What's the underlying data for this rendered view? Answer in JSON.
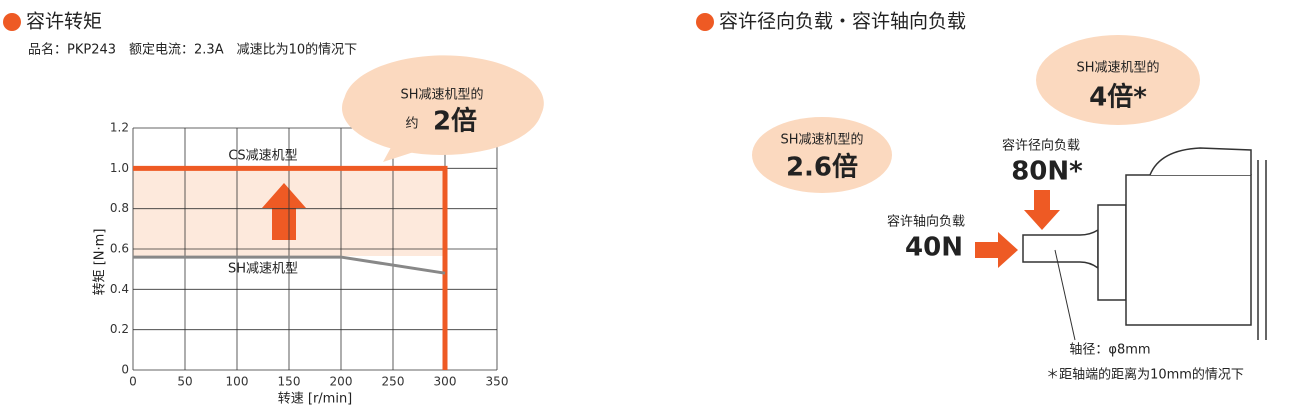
{
  "chart_data": {
    "type": "line",
    "title": "容许转矩",
    "subtitle": "品名：PKP243　额定电流：2.3A　减速比为10的情况下",
    "x_label": "转速 [r/min]",
    "y_label": "转矩 [N·m]",
    "xlim": [
      0,
      350
    ],
    "xticks": [
      0,
      50,
      100,
      150,
      200,
      250,
      300,
      350
    ],
    "ylim": [
      0,
      1.2
    ],
    "yticks": [
      0,
      0.2,
      0.4,
      0.6,
      0.8,
      {
        "value": 1,
        "label": "1.0"
      },
      1.2
    ],
    "grid": true,
    "series": [
      {
        "name": "CS减速机型",
        "color": "#ee5a24",
        "x": [
          0,
          300,
          300
        ],
        "values": [
          1.0,
          1.0,
          0
        ]
      },
      {
        "name": "SH减速机型",
        "color": "#888888",
        "x": [
          0,
          200,
          300
        ],
        "values": [
          0.56,
          0.56,
          0.48
        ]
      }
    ],
    "annotation": [
      "SH减速机型的",
      "约",
      "2倍"
    ]
  },
  "diagram": {
    "title": "容许径向负载・容许轴向负载",
    "bubble_axial": [
      "SH减速机型的",
      "2.6倍"
    ],
    "bubble_radial": [
      "SH减速机型的",
      "4倍*"
    ],
    "radial_label": "容许径向负载",
    "radial_value": "80N*",
    "axial_label": "容许轴向负载",
    "axial_value": "40N",
    "shaft": "轴径：φ8mm",
    "footnote": "＊距轴端的距离为10mm的情况下"
  }
}
